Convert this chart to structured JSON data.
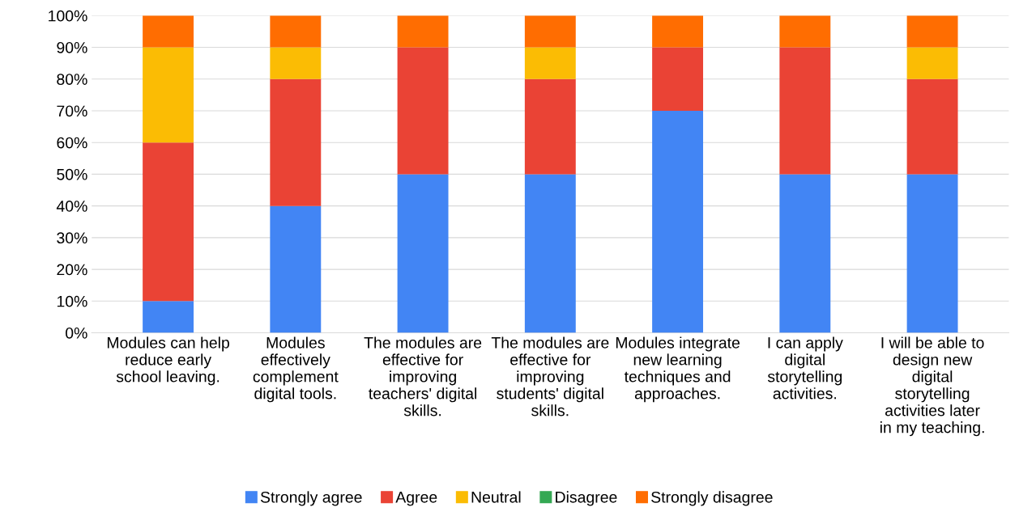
{
  "chart_data": {
    "type": "bar",
    "stacked": true,
    "categories": [
      "Modules can help reduce early school leaving.",
      "Modules effectively complement digital tools.",
      "The modules are effective for improving teachers' digital skills.",
      "The modules are effective for improving students' digital skills.",
      "Modules integrate new learning techniques and approaches.",
      "I can apply digital storytelling activities.",
      "I will be able to design new digital storytelling activities later in my teaching."
    ],
    "series": [
      {
        "name": "Strongly agree",
        "color": "#4285f4",
        "values": [
          10,
          40,
          50,
          50,
          70,
          50,
          50
        ]
      },
      {
        "name": "Agree",
        "color": "#ea4335",
        "values": [
          50,
          40,
          40,
          30,
          20,
          40,
          30
        ]
      },
      {
        "name": "Neutral",
        "color": "#fbbc04",
        "values": [
          30,
          10,
          0,
          10,
          0,
          0,
          10
        ]
      },
      {
        "name": "Disagree",
        "color": "#34a853",
        "values": [
          0,
          0,
          0,
          0,
          0,
          0,
          0
        ]
      },
      {
        "name": "Strongly disagree",
        "color": "#ff6d01",
        "values": [
          10,
          10,
          10,
          10,
          10,
          10,
          10
        ]
      }
    ],
    "ylim": [
      0,
      100
    ],
    "yticks": [
      {
        "value": 0,
        "label": "0%"
      },
      {
        "value": 10,
        "label": "10%"
      },
      {
        "value": 20,
        "label": "20%"
      },
      {
        "value": 30,
        "label": "30%"
      },
      {
        "value": 40,
        "label": "40%"
      },
      {
        "value": 50,
        "label": "50%"
      },
      {
        "value": 60,
        "label": "60%"
      },
      {
        "value": 70,
        "label": "70%"
      },
      {
        "value": 80,
        "label": "80%"
      },
      {
        "value": 90,
        "label": "90%"
      },
      {
        "value": 100,
        "label": "100%"
      }
    ],
    "grid": "y",
    "legend": "bottom"
  }
}
